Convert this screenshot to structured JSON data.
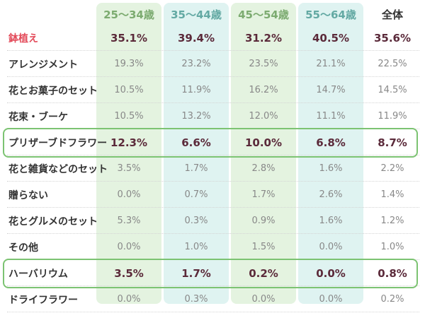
{
  "colors": {
    "col_bg": [
      "#e4f3e0",
      "#dff3f1",
      "#e4f3e0",
      "#dff3f1"
    ],
    "col_head": [
      "#7cab70",
      "#63a9a3",
      "#7cab70",
      "#63a9a3"
    ],
    "total_head": "#333333",
    "highlight_border": "#7cc372",
    "top_row_label": "#e34b5a"
  },
  "chart_data": {
    "type": "table",
    "columns": [
      "25〜34歳",
      "35〜44歳",
      "45〜54歳",
      "55〜64歳",
      "全体"
    ],
    "rows": [
      {
        "label": "鉢植え",
        "values": [
          "35.1%",
          "39.4%",
          "31.2%",
          "40.5%",
          "35.6%"
        ]
      },
      {
        "label": "アレンジメント",
        "values": [
          "19.3%",
          "23.2%",
          "23.5%",
          "21.1%",
          "22.5%"
        ]
      },
      {
        "label": "花とお菓子のセット",
        "values": [
          "10.5%",
          "11.9%",
          "16.2%",
          "14.7%",
          "14.5%"
        ]
      },
      {
        "label": "花束・ブーケ",
        "values": [
          "10.5%",
          "13.2%",
          "12.0%",
          "11.1%",
          "11.9%"
        ]
      },
      {
        "label": "プリザーブドフラワー",
        "values": [
          "12.3%",
          "6.6%",
          "10.0%",
          "6.8%",
          "8.7%"
        ]
      },
      {
        "label": "花と雑貨などのセット",
        "values": [
          "3.5%",
          "1.7%",
          "2.8%",
          "1.6%",
          "2.2%"
        ]
      },
      {
        "label": "贈らない",
        "values": [
          "0.0%",
          "0.7%",
          "1.7%",
          "2.6%",
          "1.4%"
        ]
      },
      {
        "label": "花とグルメのセット",
        "values": [
          "5.3%",
          "0.3%",
          "0.9%",
          "1.6%",
          "1.2%"
        ]
      },
      {
        "label": "その他",
        "values": [
          "0.0%",
          "1.0%",
          "1.5%",
          "0.0%",
          "1.0%"
        ]
      },
      {
        "label": "ハーバリウム",
        "values": [
          "3.5%",
          "1.7%",
          "0.2%",
          "0.0%",
          "0.8%"
        ]
      },
      {
        "label": "ドライフラワー",
        "values": [
          "0.0%",
          "0.3%",
          "0.0%",
          "0.0%",
          "0.2%"
        ]
      }
    ],
    "bold_rows": [
      0,
      4,
      9
    ],
    "highlighted_rows": [
      4,
      9
    ]
  }
}
